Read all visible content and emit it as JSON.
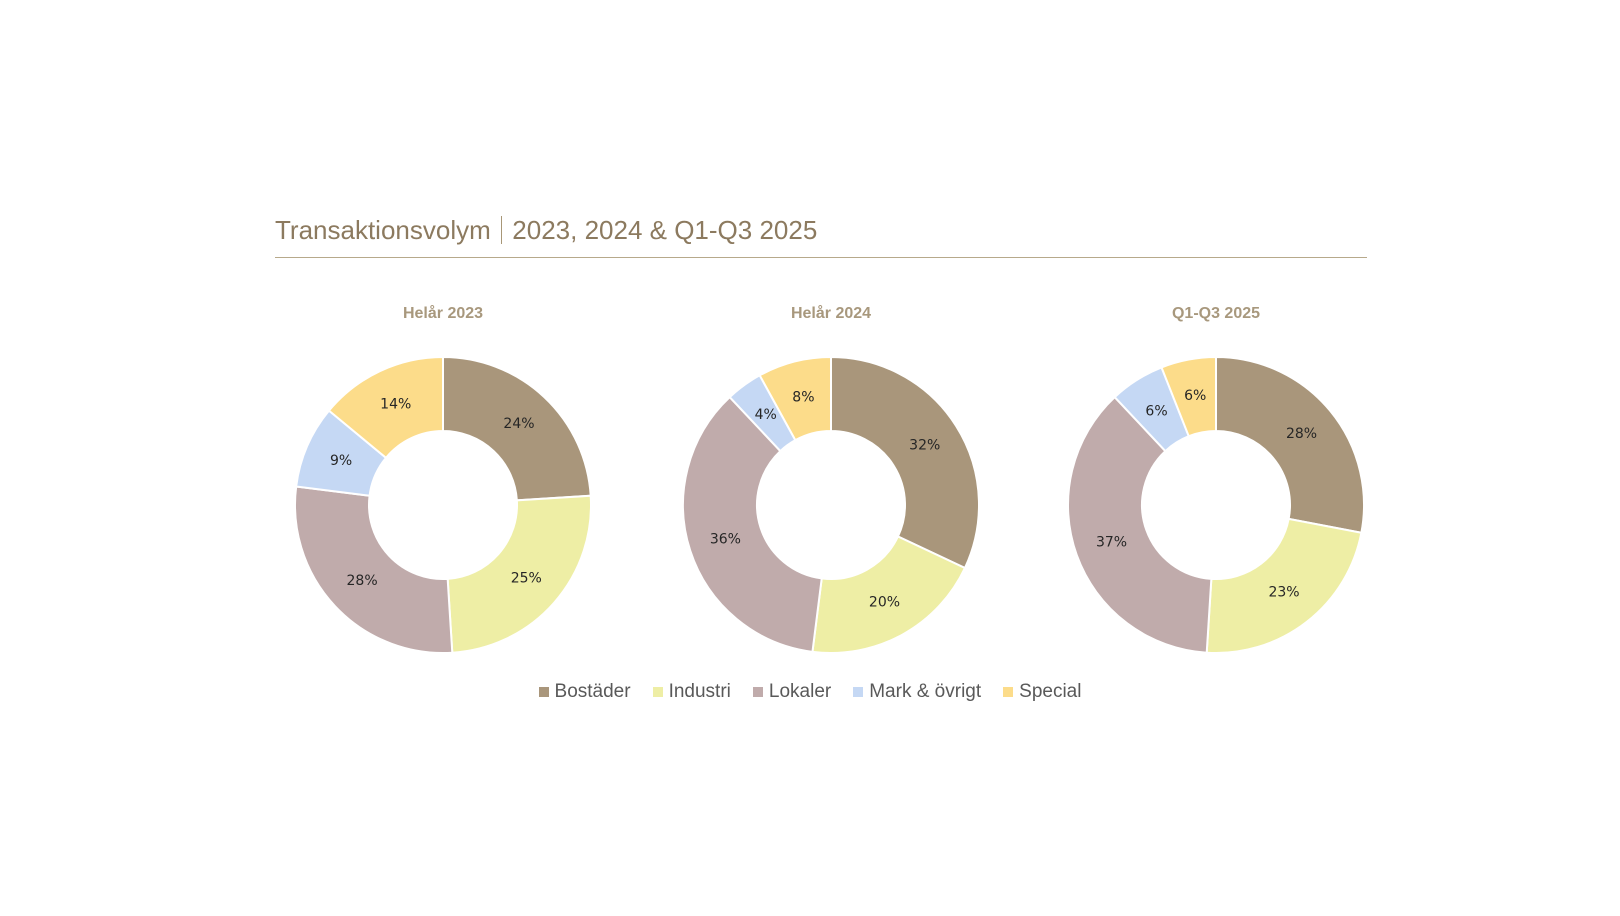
{
  "header": {
    "title": "Transaktionsvolym",
    "subtitle": "2023, 2024 & Q1-Q3 2025"
  },
  "colors": {
    "Bostäder": "#a9967b",
    "Industri": "#eeeea5",
    "Lokaler": "#c0abab",
    "Mark & övrigt": "#c5d8f4",
    "Special": "#fcdc8a",
    "title": "#8c7a5f",
    "chart_title": "#a8987d",
    "rule": "#b7a98b"
  },
  "legend": {
    "items": [
      "Bostäder",
      "Industri",
      "Lokaler",
      "Mark & övrigt",
      "Special"
    ]
  },
  "chart_data": [
    {
      "type": "pie",
      "title": "Helår 2023",
      "categories": [
        "Bostäder",
        "Industri",
        "Lokaler",
        "Mark & övrigt",
        "Special"
      ],
      "values": [
        24,
        25,
        28,
        9,
        14
      ],
      "labels": [
        "24%",
        "25%",
        "28%",
        "9%",
        "14%"
      ]
    },
    {
      "type": "pie",
      "title": "Helår 2024",
      "categories": [
        "Bostäder",
        "Industri",
        "Lokaler",
        "Mark & övrigt",
        "Special"
      ],
      "values": [
        32,
        20,
        36,
        4,
        8
      ],
      "labels": [
        "32%",
        "20%",
        "36%",
        "4%",
        "8%"
      ]
    },
    {
      "type": "pie",
      "title": "Q1-Q3 2025",
      "categories": [
        "Bostäder",
        "Industri",
        "Lokaler",
        "Mark & övrigt",
        "Special"
      ],
      "values": [
        28,
        23,
        37,
        6,
        6
      ],
      "labels": [
        "28%",
        "23%",
        "37%",
        "6%",
        "6%"
      ]
    }
  ]
}
